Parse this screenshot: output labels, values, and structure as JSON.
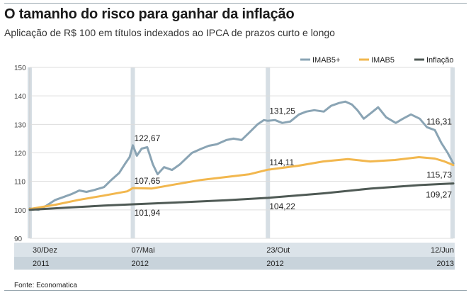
{
  "header": {
    "title": "O tamanho do risco para ganhar da inflação",
    "subtitle": "Aplicação de R$ 100 em títulos indexados ao IPCA de prazos curto e longo"
  },
  "footer": {
    "source": "Fonte: Economatica"
  },
  "colors": {
    "IMAB5+": "#8aa4b4",
    "IMAB5": "#f2b74e",
    "Inflação": "#4f5a55",
    "band": "#d6dee4",
    "x_strip": "#dbe3e9",
    "grid": "#dddddd",
    "axis": "#cccccc"
  },
  "chart_data": {
    "type": "line",
    "title": "O tamanho do risco para ganhar da inflação",
    "subtitle": "Aplicação de R$ 100 em títulos indexados ao IPCA de prazos curto e longo",
    "ylim": [
      90,
      150
    ],
    "y_ticks": [
      90,
      100,
      110,
      120,
      130,
      140,
      150
    ],
    "xlim": [
      "2011-12-30",
      "2013-06-12"
    ],
    "grid": true,
    "legend_position": "top-right",
    "legend": [
      "IMAB5+",
      "IMAB5",
      "Inflação"
    ],
    "x_tick_labels": [
      {
        "date": "2011-12-30",
        "day_label": "30/Dez",
        "year_label": "2011"
      },
      {
        "date": "2012-05-07",
        "day_label": "07/Mai",
        "year_label": "2012"
      },
      {
        "date": "2012-10-23",
        "day_label": "23/Out",
        "year_label": "2012"
      },
      {
        "date": "2013-06-12",
        "day_label": "12/Jun",
        "year_label": "2013"
      }
    ],
    "highlight_dates": [
      "2011-12-30",
      "2012-05-07",
      "2012-10-23",
      "2013-06-12"
    ],
    "series": [
      {
        "name": "IMAB5+",
        "points": [
          [
            "2011-12-30",
            100.5
          ],
          [
            "2012-01-10",
            100.0
          ],
          [
            "2012-01-20",
            101.5
          ],
          [
            "2012-01-31",
            103.5
          ],
          [
            "2012-02-10",
            104.5
          ],
          [
            "2012-02-20",
            105.5
          ],
          [
            "2012-03-01",
            106.8
          ],
          [
            "2012-03-10",
            106.3
          ],
          [
            "2012-03-20",
            107.0
          ],
          [
            "2012-04-01",
            108.0
          ],
          [
            "2012-04-10",
            110.5
          ],
          [
            "2012-04-20",
            113.0
          ],
          [
            "2012-04-28",
            116.5
          ],
          [
            "2012-05-03",
            118.5
          ],
          [
            "2012-05-07",
            122.67
          ],
          [
            "2012-05-12",
            119.0
          ],
          [
            "2012-05-18",
            121.5
          ],
          [
            "2012-05-25",
            122.0
          ],
          [
            "2012-06-01",
            116.0
          ],
          [
            "2012-06-07",
            112.5
          ],
          [
            "2012-06-15",
            115.0
          ],
          [
            "2012-06-25",
            114.0
          ],
          [
            "2012-07-05",
            116.0
          ],
          [
            "2012-07-20",
            120.0
          ],
          [
            "2012-08-01",
            121.5
          ],
          [
            "2012-08-10",
            122.5
          ],
          [
            "2012-08-20",
            123.0
          ],
          [
            "2012-09-01",
            124.5
          ],
          [
            "2012-09-10",
            125.0
          ],
          [
            "2012-09-20",
            124.5
          ],
          [
            "2012-10-01",
            127.5
          ],
          [
            "2012-10-10",
            130.0
          ],
          [
            "2012-10-18",
            131.5
          ],
          [
            "2012-10-23",
            131.25
          ],
          [
            "2012-11-01",
            131.5
          ],
          [
            "2012-11-10",
            130.5
          ],
          [
            "2012-11-20",
            131.0
          ],
          [
            "2012-12-01",
            133.5
          ],
          [
            "2012-12-10",
            134.5
          ],
          [
            "2012-12-20",
            135.0
          ],
          [
            "2013-01-01",
            134.5
          ],
          [
            "2013-01-10",
            136.5
          ],
          [
            "2013-01-20",
            137.5
          ],
          [
            "2013-01-28",
            138.0
          ],
          [
            "2013-02-05",
            137.0
          ],
          [
            "2013-02-12",
            135.0
          ],
          [
            "2013-02-20",
            132.0
          ],
          [
            "2013-03-01",
            134.0
          ],
          [
            "2013-03-10",
            136.0
          ],
          [
            "2013-03-20",
            132.5
          ],
          [
            "2013-04-01",
            130.5
          ],
          [
            "2013-04-10",
            132.0
          ],
          [
            "2013-04-20",
            133.5
          ],
          [
            "2013-05-01",
            132.0
          ],
          [
            "2013-05-10",
            129.0
          ],
          [
            "2013-05-20",
            128.0
          ],
          [
            "2013-05-28",
            123.5
          ],
          [
            "2013-06-05",
            120.0
          ],
          [
            "2013-06-12",
            116.31
          ]
        ]
      },
      {
        "name": "IMAB5",
        "points": [
          [
            "2011-12-30",
            100.3
          ],
          [
            "2012-01-31",
            101.8
          ],
          [
            "2012-02-29",
            103.5
          ],
          [
            "2012-03-31",
            105.0
          ],
          [
            "2012-04-30",
            106.5
          ],
          [
            "2012-05-07",
            107.65
          ],
          [
            "2012-05-31",
            107.5
          ],
          [
            "2012-06-30",
            109.0
          ],
          [
            "2012-07-31",
            110.5
          ],
          [
            "2012-08-31",
            111.5
          ],
          [
            "2012-09-30",
            112.5
          ],
          [
            "2012-10-23",
            114.11
          ],
          [
            "2012-11-30",
            115.5
          ],
          [
            "2012-12-31",
            117.0
          ],
          [
            "2013-01-31",
            117.8
          ],
          [
            "2013-02-28",
            117.0
          ],
          [
            "2013-03-31",
            117.5
          ],
          [
            "2013-04-30",
            118.5
          ],
          [
            "2013-05-20",
            118.0
          ],
          [
            "2013-06-01",
            117.0
          ],
          [
            "2013-06-12",
            115.73
          ]
        ]
      },
      {
        "name": "Inflação",
        "points": [
          [
            "2011-12-30",
            100.0
          ],
          [
            "2012-02-15",
            100.8
          ],
          [
            "2012-04-01",
            101.5
          ],
          [
            "2012-05-07",
            101.94
          ],
          [
            "2012-07-01",
            102.6
          ],
          [
            "2012-09-01",
            103.4
          ],
          [
            "2012-10-23",
            104.22
          ],
          [
            "2013-01-01",
            105.8
          ],
          [
            "2013-03-01",
            107.5
          ],
          [
            "2013-05-01",
            108.7
          ],
          [
            "2013-06-12",
            109.27
          ]
        ]
      }
    ],
    "annotations": [
      {
        "series": "IMAB5+",
        "date": "2012-05-07",
        "label": "122,67"
      },
      {
        "series": "IMAB5",
        "date": "2012-05-07",
        "label": "107,65"
      },
      {
        "series": "Inflação",
        "date": "2012-05-07",
        "label": "101,94"
      },
      {
        "series": "IMAB5+",
        "date": "2012-10-23",
        "label": "131,25"
      },
      {
        "series": "IMAB5",
        "date": "2012-10-23",
        "label": "114,11"
      },
      {
        "series": "Inflação",
        "date": "2012-10-23",
        "label": "104,22"
      },
      {
        "series": "IMAB5+",
        "date": "2013-06-12",
        "label": "116,31"
      },
      {
        "series": "IMAB5",
        "date": "2013-06-12",
        "label": "115,73"
      },
      {
        "series": "Inflação",
        "date": "2013-06-12",
        "label": "109,27"
      }
    ]
  }
}
